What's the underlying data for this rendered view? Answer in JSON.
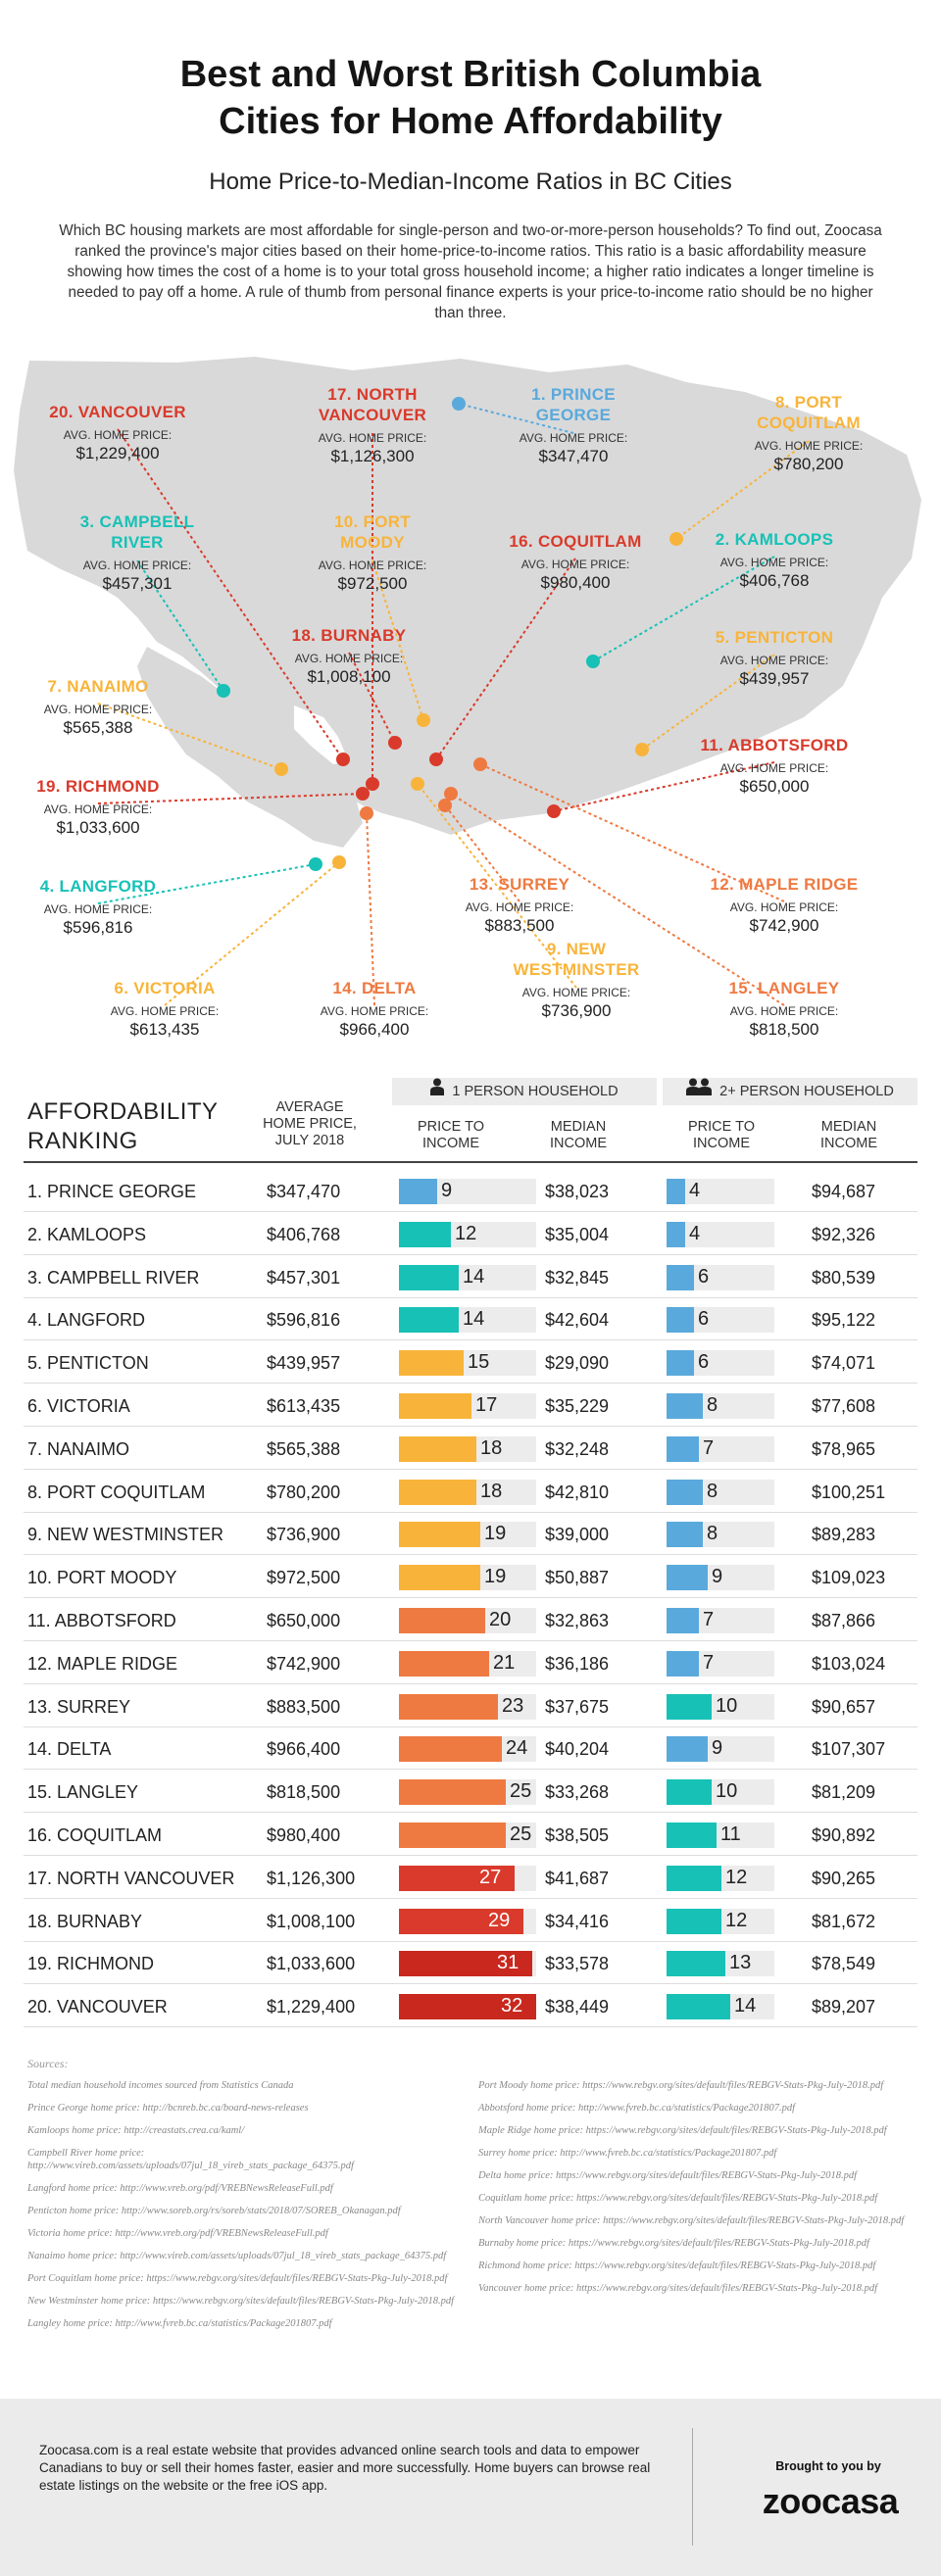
{
  "header": {
    "title": "Best and Worst British Columbia\nCities for Home Affordability",
    "subtitle": "Home Price-to-Median-Income Ratios in BC Cities",
    "intro": "Which BC housing markets are most affordable for single-person and two-or-more-person households? To find out, Zoocasa ranked the province's major cities based on their home-price-to-income ratios. This ratio is a basic affordability measure showing how times the cost of a home is to your total gross household income; a higher ratio indicates a longer timeline is needed to pay off a home. A rule of thumb from personal finance experts is your price-to-income ratio should be no higher than three."
  },
  "colors": {
    "red": "#d93a2b",
    "dark_red": "#c8281e",
    "orange": "#ee7a42",
    "amber": "#f8b43a",
    "teal": "#17c1b6",
    "blue": "#5aa9dc",
    "map_gray": "#d9d9d9"
  },
  "map": {
    "price_label": "AVG. HOME PRICE:",
    "cities": [
      {
        "name": "20. VANCOUVER",
        "price": "$1,229,400",
        "color": "#d93a2b"
      },
      {
        "name": "17. NORTH\nVANCOUVER",
        "price": "$1,126,300",
        "color": "#d93a2b"
      },
      {
        "name": "1. PRINCE\nGEORGE",
        "price": "$347,470",
        "color": "#5aa9dc"
      },
      {
        "name": "8. PORT\nCOQUITLAM",
        "price": "$780,200",
        "color": "#f8b43a"
      },
      {
        "name": "3. CAMPBELL\nRIVER",
        "price": "$457,301",
        "color": "#17c1b6"
      },
      {
        "name": "10. PORT\nMOODY",
        "price": "$972,500",
        "color": "#f8b43a"
      },
      {
        "name": "16. COQUITLAM",
        "price": "$980,400",
        "color": "#d93a2b"
      },
      {
        "name": "2. KAMLOOPS",
        "price": "$406,768",
        "color": "#17c1b6"
      },
      {
        "name": "5. PENTICTON",
        "price": "$439,957",
        "color": "#f8b43a"
      },
      {
        "name": "18. BURNABY",
        "price": "$1,008,100",
        "color": "#d93a2b"
      },
      {
        "name": "7. NANAIMO",
        "price": "$565,388",
        "color": "#f8b43a"
      },
      {
        "name": "11. ABBOTSFORD",
        "price": "$650,000",
        "color": "#d93a2b"
      },
      {
        "name": "19. RICHMOND",
        "price": "$1,033,600",
        "color": "#d93a2b"
      },
      {
        "name": "4. LANGFORD",
        "price": "$596,816",
        "color": "#17c1b6"
      },
      {
        "name": "13. SURREY",
        "price": "$883,500",
        "color": "#ee7a42"
      },
      {
        "name": "12. MAPLE RIDGE",
        "price": "$742,900",
        "color": "#ee7a42"
      },
      {
        "name": "9. NEW\nWESTMINSTER",
        "price": "$736,900",
        "color": "#f8b43a"
      },
      {
        "name": "6. VICTORIA",
        "price": "$613,435",
        "color": "#f8b43a"
      },
      {
        "name": "14. DELTA",
        "price": "$966,400",
        "color": "#ee7a42"
      },
      {
        "name": "15. LANGLEY",
        "price": "$818,500",
        "color": "#ee7a42"
      }
    ]
  },
  "table": {
    "ranking_title": "AFFORDABILITY\nRANKING",
    "avg_price_header": "AVERAGE\nHOME PRICE,\nJULY 2018",
    "group1": "1 PERSON HOUSEHOLD",
    "group2": "2+ PERSON HOUSEHOLD",
    "pti_header": "PRICE TO\nINCOME",
    "median_header": "MEDIAN\nINCOME",
    "rows": [
      {
        "rank": "1. PRINCE GEORGE",
        "price": "$347,470",
        "r1": 9,
        "m1": "$38,023",
        "r2": 4,
        "m2": "$94,687",
        "c1": "#5aa9dc",
        "c2": "#5aa9dc"
      },
      {
        "rank": "2. KAMLOOPS",
        "price": "$406,768",
        "r1": 12,
        "m1": "$35,004",
        "r2": 4,
        "m2": "$92,326",
        "c1": "#17c1b6",
        "c2": "#5aa9dc"
      },
      {
        "rank": "3. CAMPBELL RIVER",
        "price": "$457,301",
        "r1": 14,
        "m1": "$32,845",
        "r2": 6,
        "m2": "$80,539",
        "c1": "#17c1b6",
        "c2": "#5aa9dc"
      },
      {
        "rank": "4. LANGFORD",
        "price": "$596,816",
        "r1": 14,
        "m1": "$42,604",
        "r2": 6,
        "m2": "$95,122",
        "c1": "#17c1b6",
        "c2": "#5aa9dc"
      },
      {
        "rank": "5. PENTICTON",
        "price": "$439,957",
        "r1": 15,
        "m1": "$29,090",
        "r2": 6,
        "m2": "$74,071",
        "c1": "#f8b43a",
        "c2": "#5aa9dc"
      },
      {
        "rank": "6. VICTORIA",
        "price": "$613,435",
        "r1": 17,
        "m1": "$35,229",
        "r2": 8,
        "m2": "$77,608",
        "c1": "#f8b43a",
        "c2": "#5aa9dc"
      },
      {
        "rank": "7. NANAIMO",
        "price": "$565,388",
        "r1": 18,
        "m1": "$32,248",
        "r2": 7,
        "m2": "$78,965",
        "c1": "#f8b43a",
        "c2": "#5aa9dc"
      },
      {
        "rank": "8. PORT COQUITLAM",
        "price": "$780,200",
        "r1": 18,
        "m1": "$42,810",
        "r2": 8,
        "m2": "$100,251",
        "c1": "#f8b43a",
        "c2": "#5aa9dc"
      },
      {
        "rank": "9. NEW WESTMINSTER",
        "price": "$736,900",
        "r1": 19,
        "m1": "$39,000",
        "r2": 8,
        "m2": "$89,283",
        "c1": "#f8b43a",
        "c2": "#5aa9dc"
      },
      {
        "rank": "10. PORT MOODY",
        "price": "$972,500",
        "r1": 19,
        "m1": "$50,887",
        "r2": 9,
        "m2": "$109,023",
        "c1": "#f8b43a",
        "c2": "#5aa9dc"
      },
      {
        "rank": "11. ABBOTSFORD",
        "price": "$650,000",
        "r1": 20,
        "m1": "$32,863",
        "r2": 7,
        "m2": "$87,866",
        "c1": "#ee7a42",
        "c2": "#5aa9dc"
      },
      {
        "rank": "12. MAPLE RIDGE",
        "price": "$742,900",
        "r1": 21,
        "m1": "$36,186",
        "r2": 7,
        "m2": "$103,024",
        "c1": "#ee7a42",
        "c2": "#5aa9dc"
      },
      {
        "rank": "13. SURREY",
        "price": "$883,500",
        "r1": 23,
        "m1": "$37,675",
        "r2": 10,
        "m2": "$90,657",
        "c1": "#ee7a42",
        "c2": "#17c1b6"
      },
      {
        "rank": "14. DELTA",
        "price": "$966,400",
        "r1": 24,
        "m1": "$40,204",
        "r2": 9,
        "m2": "$107,307",
        "c1": "#ee7a42",
        "c2": "#5aa9dc"
      },
      {
        "rank": "15. LANGLEY",
        "price": "$818,500",
        "r1": 25,
        "m1": "$33,268",
        "r2": 10,
        "m2": "$81,209",
        "c1": "#ee7a42",
        "c2": "#17c1b6"
      },
      {
        "rank": "16. COQUITLAM",
        "price": "$980,400",
        "r1": 25,
        "m1": "$38,505",
        "r2": 11,
        "m2": "$90,892",
        "c1": "#ee7a42",
        "c2": "#17c1b6"
      },
      {
        "rank": "17. NORTH VANCOUVER",
        "price": "$1,126,300",
        "r1": 27,
        "m1": "$41,687",
        "r2": 12,
        "m2": "$90,265",
        "c1": "#d93a2b",
        "c2": "#17c1b6"
      },
      {
        "rank": "18. BURNABY",
        "price": "$1,008,100",
        "r1": 29,
        "m1": "$34,416",
        "r2": 12,
        "m2": "$81,672",
        "c1": "#d93a2b",
        "c2": "#17c1b6"
      },
      {
        "rank": "19. RICHMOND",
        "price": "$1,033,600",
        "r1": 31,
        "m1": "$33,578",
        "r2": 13,
        "m2": "$78,549",
        "c1": "#c8281e",
        "c2": "#17c1b6"
      },
      {
        "rank": "20. VANCOUVER",
        "price": "$1,229,400",
        "r1": 32,
        "m1": "$38,449",
        "r2": 14,
        "m2": "$89,207",
        "c1": "#c8281e",
        "c2": "#17c1b6"
      }
    ]
  },
  "sources": {
    "label": "Sources:",
    "left": [
      "Total median household incomes sourced from Statistics Canada",
      "Prince George home price: http://bcnreb.bc.ca/board-news-releases",
      "Kamloops home price: http://creastats.crea.ca/kaml/",
      "Campbell River home price: http://www.vireb.com/assets/uploads/07jul_18_vireb_stats_package_64375.pdf",
      "Langford home price: http://www.vreb.org/pdf/VREBNewsReleaseFull.pdf",
      "Penticton home price: http://www.soreb.org/rs/soreb/stats/2018/07/SOREB_Okanagan.pdf",
      "Victoria home price: http://www.vreb.org/pdf/VREBNewsReleaseFull.pdf",
      "Nanaimo home price: http://www.vireb.com/assets/uploads/07jul_18_vireb_stats_package_64375.pdf",
      "Port Coquitlam home price: https://www.rebgv.org/sites/default/files/REBGV-Stats-Pkg-July-2018.pdf",
      "New Westminster home price: https://www.rebgv.org/sites/default/files/REBGV-Stats-Pkg-July-2018.pdf",
      "Langley home price: http://www.fvreb.bc.ca/statistics/Package201807.pdf"
    ],
    "right": [
      "Port Moody home price: https://www.rebgv.org/sites/default/files/REBGV-Stats-Pkg-July-2018.pdf",
      "Abbotsford home price: http://www.fvreb.bc.ca/statistics/Package201807.pdf",
      "Maple Ridge home price: https://www.rebgv.org/sites/default/files/REBGV-Stats-Pkg-July-2018.pdf",
      "Surrey home price: http://www.fvreb.bc.ca/statistics/Package201807.pdf",
      "Delta home price: https://www.rebgv.org/sites/default/files/REBGV-Stats-Pkg-July-2018.pdf",
      "Coquitlam home price: https://www.rebgv.org/sites/default/files/REBGV-Stats-Pkg-July-2018.pdf",
      "North Vancouver home price: https://www.rebgv.org/sites/default/files/REBGV-Stats-Pkg-July-2018.pdf",
      "Burnaby home price: https://www.rebgv.org/sites/default/files/REBGV-Stats-Pkg-July-2018.pdf",
      "Richmond home price: https://www.rebgv.org/sites/default/files/REBGV-Stats-Pkg-July-2018.pdf",
      "Vancouver home price: https://www.rebgv.org/sites/default/files/REBGV-Stats-Pkg-July-2018.pdf"
    ]
  },
  "footer": {
    "text": "Zoocasa.com is a real estate website that provides advanced online search tools and data to empower Canadians to buy or sell their homes faster, easier and more successfully. Home buyers can browse real estate listings on the website or the free iOS app.",
    "brought": "Brought to you by",
    "logo": "zoocasa"
  }
}
